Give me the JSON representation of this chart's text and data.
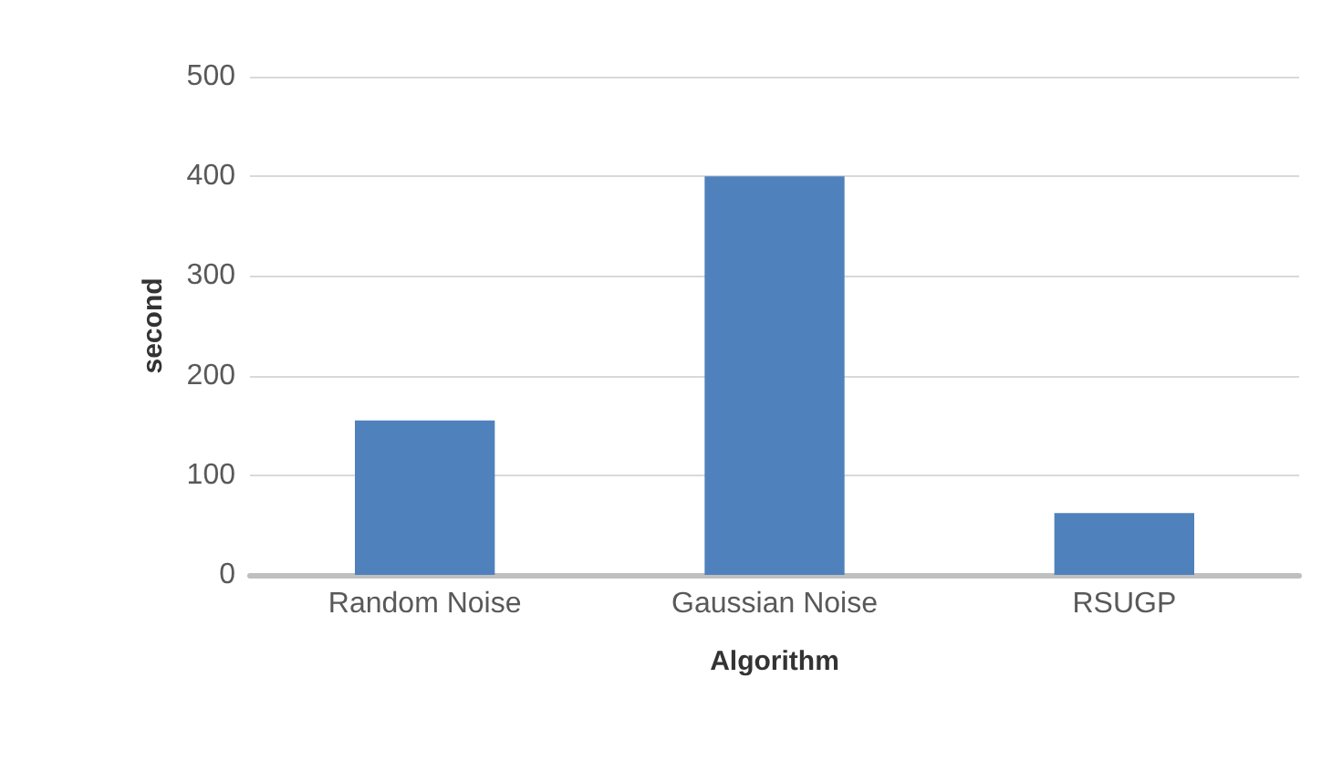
{
  "chart_data": {
    "type": "bar",
    "xlabel": "Algorithm",
    "ylabel": "second",
    "categories": [
      "Random Noise",
      "Gaussian Noise",
      "RSUGP"
    ],
    "values": [
      155,
      400,
      62
    ],
    "color": "#4f81bd",
    "ylim": [
      0,
      500
    ],
    "yticks": [
      0,
      100,
      200,
      300,
      400,
      500
    ],
    "grid": "y"
  }
}
